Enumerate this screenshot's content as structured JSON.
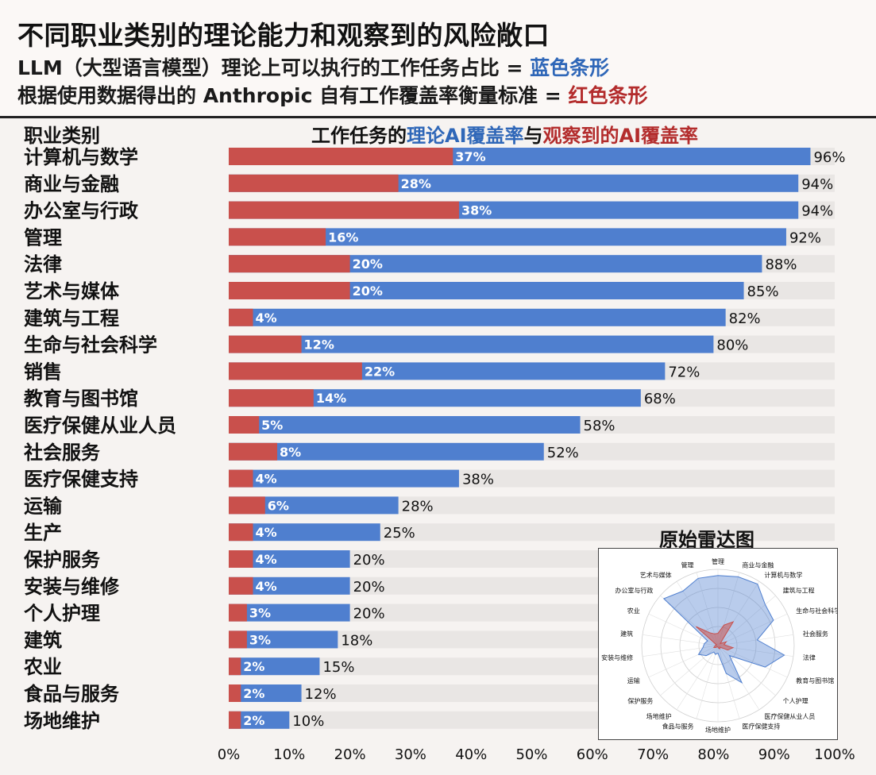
{
  "header": {
    "title": "不同职业类别的理论能力和观察到的风险敞口",
    "sub1_prefix": "LLM（大型语言模型）理论上可以执行的工作任务占比 = ",
    "sub1_highlight": "蓝色条形",
    "sub2_prefix": "根据使用数据得出的 Anthropic 自有工作覆盖率衡量标准 = ",
    "sub2_highlight": "红色条形"
  },
  "column_header": "职业类别",
  "chart_title_parts": {
    "p1": "工作任务的",
    "p2": "理论AI覆盖率",
    "p3": "与",
    "p4": "观察到的AI覆盖率"
  },
  "colors": {
    "theoretical": "#4f7fcf",
    "observed": "#c9504c",
    "track": "#e9e6e4"
  },
  "chart_data": {
    "type": "bar",
    "orientation": "horizontal",
    "categories": [
      "计算机与数学",
      "商业与金融",
      "办公室与行政",
      "管理",
      "法律",
      "艺术与媒体",
      "建筑与工程",
      "生命与社会科学",
      "销售",
      "教育与图书馆",
      "医疗保健从业人员",
      "社会服务",
      "医疗保健支持",
      "运输",
      "生产",
      "保护服务",
      "安装与维修",
      "个人护理",
      "建筑",
      "农业",
      "食品与服务",
      "场地维护"
    ],
    "series": [
      {
        "name": "理论AI覆盖率",
        "values": [
          96,
          94,
          94,
          92,
          88,
          85,
          82,
          80,
          72,
          68,
          58,
          52,
          38,
          28,
          25,
          20,
          20,
          20,
          18,
          15,
          12,
          10
        ]
      },
      {
        "name": "观察到的AI覆盖率",
        "values": [
          37,
          28,
          38,
          16,
          20,
          20,
          4,
          12,
          22,
          14,
          5,
          8,
          4,
          6,
          4,
          4,
          4,
          3,
          3,
          2,
          2,
          2
        ]
      }
    ],
    "xlim": [
      0,
      100
    ],
    "x_ticks": [
      "0%",
      "10%",
      "20%",
      "30%",
      "40%",
      "50%",
      "60%",
      "70%",
      "80%",
      "90%",
      "100%"
    ],
    "value_suffix": "%"
  },
  "inset": {
    "title": "原始雷达图",
    "radar_labels": [
      "管理",
      "商业与金融",
      "计算机与数学",
      "建筑与工程",
      "生命与社会科学",
      "社会服务",
      "法律",
      "教育与图书馆",
      "个人护理",
      "医疗保健从业人员",
      "医疗保健支持",
      "场地维护",
      "食品与服务",
      "场地维护",
      "保护服务",
      "运输",
      "安装与维修",
      "建筑",
      "农业",
      "办公室与行政",
      "艺术与媒体",
      "管理"
    ]
  }
}
